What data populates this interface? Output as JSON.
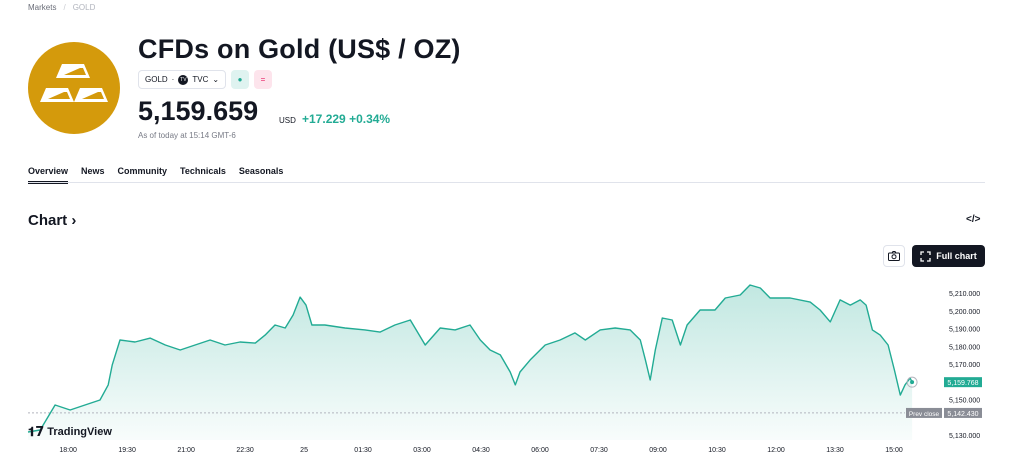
{
  "breadcrumb": {
    "parent": "Markets",
    "current": "GOLD"
  },
  "header": {
    "title": "CFDs on Gold (US$ / OZ)",
    "symbol": "GOLD",
    "exchange": "TVC",
    "price": "5,159.659",
    "currency": "USD",
    "change": "+17.229",
    "change_pct": "+0.34%",
    "as_of": "As of today at 15:14 GMT-6"
  },
  "tabs": [
    {
      "label": "Overview"
    },
    {
      "label": "News"
    },
    {
      "label": "Community"
    },
    {
      "label": "Technicals"
    },
    {
      "label": "Seasonals"
    }
  ],
  "chart_section": {
    "heading": "Chart",
    "full_chart": "Full chart",
    "brand": "TradingView",
    "embed_icon": "</>"
  },
  "colors": {
    "accent": "#22ab94",
    "gold": "#d49a0c"
  },
  "chart_data": {
    "type": "area",
    "x_ticks": [
      {
        "t": 0,
        "label": "18:00"
      },
      {
        "t": 1.5,
        "label": "19:30"
      },
      {
        "t": 3,
        "label": "21:00"
      },
      {
        "t": 4.5,
        "label": "22:30"
      },
      {
        "t": 6,
        "label": "25"
      },
      {
        "t": 7.5,
        "label": "01:30"
      },
      {
        "t": 9,
        "label": "03:00"
      },
      {
        "t": 10.5,
        "label": "04:30"
      },
      {
        "t": 12,
        "label": "06:00"
      },
      {
        "t": 13.5,
        "label": "07:30"
      },
      {
        "t": 15,
        "label": "09:00"
      },
      {
        "t": 16.5,
        "label": "10:30"
      },
      {
        "t": 18,
        "label": "12:00"
      },
      {
        "t": 19.5,
        "label": "13:30"
      },
      {
        "t": 21,
        "label": "15:00"
      }
    ],
    "y_ticks": [
      {
        "v": 5210,
        "label": "5,210.000"
      },
      {
        "v": 5200,
        "label": "5,200.000"
      },
      {
        "v": 5190,
        "label": "5,190.000"
      },
      {
        "v": 5180,
        "label": "5,180.000"
      },
      {
        "v": 5170,
        "label": "5,170.000"
      },
      {
        "v": 5150,
        "label": "5,150.000"
      },
      {
        "v": 5130,
        "label": "5,130.000"
      }
    ],
    "xlim": [
      -1.02,
      22.17
    ],
    "ylim": [
      5130,
      5210
    ],
    "last_price": {
      "v": 5159.768,
      "label": "5,159.768"
    },
    "prev_close": {
      "v": 5142.43,
      "label": "5,142.430",
      "text": "Prev close"
    },
    "t": [
      -1.02,
      -0.71,
      -0.33,
      0.05,
      0.43,
      0.81,
      1.02,
      1.12,
      1.32,
      1.7,
      2.09,
      2.47,
      2.85,
      3.23,
      3.61,
      3.99,
      4.37,
      4.76,
      5.01,
      5.26,
      5.52,
      5.72,
      5.9,
      6.05,
      6.2,
      6.53,
      7.04,
      7.55,
      7.93,
      8.31,
      8.7,
      9.08,
      9.46,
      9.84,
      10.22,
      10.48,
      10.73,
      10.99,
      11.24,
      11.37,
      11.49,
      11.75,
      12.13,
      12.51,
      12.89,
      13.15,
      13.53,
      13.91,
      14.29,
      14.55,
      14.68,
      14.8,
      14.93,
      15.11,
      15.36,
      15.57,
      15.74,
      16.07,
      16.45,
      16.71,
      17.09,
      17.34,
      17.6,
      17.85,
      18.36,
      18.87,
      19.12,
      19.38,
      19.63,
      19.89,
      20.14,
      20.29,
      20.45,
      20.65,
      20.85,
      21.01,
      21.16,
      21.28,
      21.41,
      21.46
    ],
    "values": [
      5131.7,
      5132.8,
      5146.9,
      5144.1,
      5146.9,
      5149.7,
      5158.2,
      5169.4,
      5183.5,
      5182.4,
      5184.6,
      5180.7,
      5177.9,
      5180.7,
      5183.5,
      5180.7,
      5182.4,
      5181.8,
      5186.3,
      5192.0,
      5190.3,
      5197.6,
      5207.7,
      5203.2,
      5192.0,
      5192.0,
      5190.3,
      5189.2,
      5188.0,
      5192.0,
      5194.8,
      5180.7,
      5190.3,
      5189.2,
      5192.0,
      5183.5,
      5177.9,
      5175.1,
      5165.5,
      5158.2,
      5165.5,
      5172.3,
      5180.7,
      5183.5,
      5187.5,
      5183.5,
      5189.2,
      5190.3,
      5189.2,
      5183.5,
      5172.3,
      5161.0,
      5177.9,
      5195.9,
      5194.8,
      5180.7,
      5192.0,
      5200.4,
      5200.4,
      5207.2,
      5208.9,
      5214.5,
      5212.8,
      5207.2,
      5207.2,
      5204.9,
      5200.4,
      5193.7,
      5206.1,
      5203.2,
      5206.1,
      5203.2,
      5189.2,
      5186.3,
      5180.7,
      5166.6,
      5152.5,
      5158.2,
      5162.1,
      5159.8
    ]
  }
}
